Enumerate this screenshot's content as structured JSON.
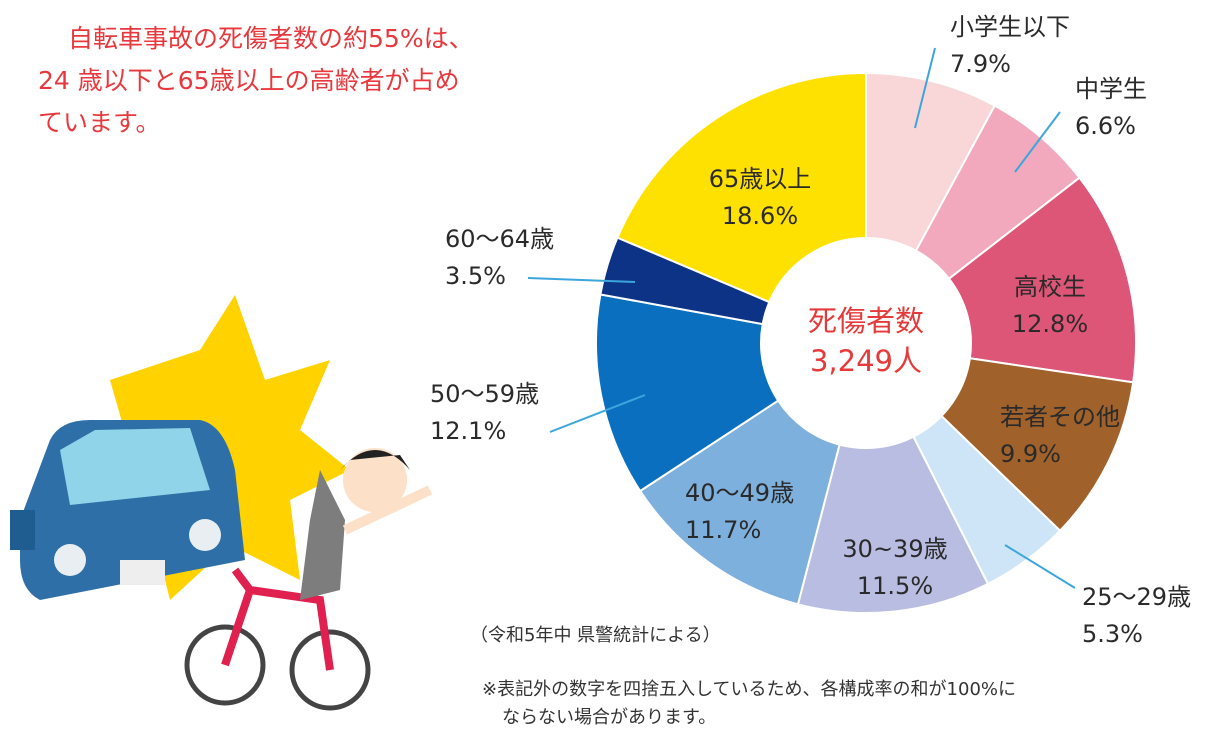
{
  "chart_data": {
    "type": "donut",
    "headline": [
      "自転車事故の死傷者数の約55%は、",
      "24 歳以下と65歳以上の高齢者が占め",
      "ています。"
    ],
    "center_label": "死傷者数",
    "center_value": "3,249人",
    "categories": [
      "小学生以下",
      "中学生",
      "高校生",
      "若者その他",
      "25～29歳",
      "30~39歳",
      "40～49歳",
      "50～59歳",
      "60～64歳",
      "65歳以上"
    ],
    "values": [
      7.9,
      6.6,
      12.8,
      9.9,
      5.3,
      11.5,
      11.7,
      12.1,
      3.5,
      18.6
    ],
    "value_labels": [
      "7.9%",
      "6.6%",
      "12.8%",
      "9.9%",
      "5.3%",
      "11.5%",
      "11.7%",
      "12.1%",
      "3.5%",
      "18.6%"
    ],
    "colors": [
      "#f9d6d8",
      "#f2a9bd",
      "#dd5677",
      "#a0622a",
      "#cde5f6",
      "#b9bde1",
      "#7eb0dd",
      "#0b6fbf",
      "#0d3386",
      "#ffe100"
    ],
    "source": "（令和5年中 県警統計による）",
    "footnote": [
      "※表記外の数字を四捨五入しているため、各構成率の和が100%に",
      "ならない場合があります。"
    ]
  }
}
